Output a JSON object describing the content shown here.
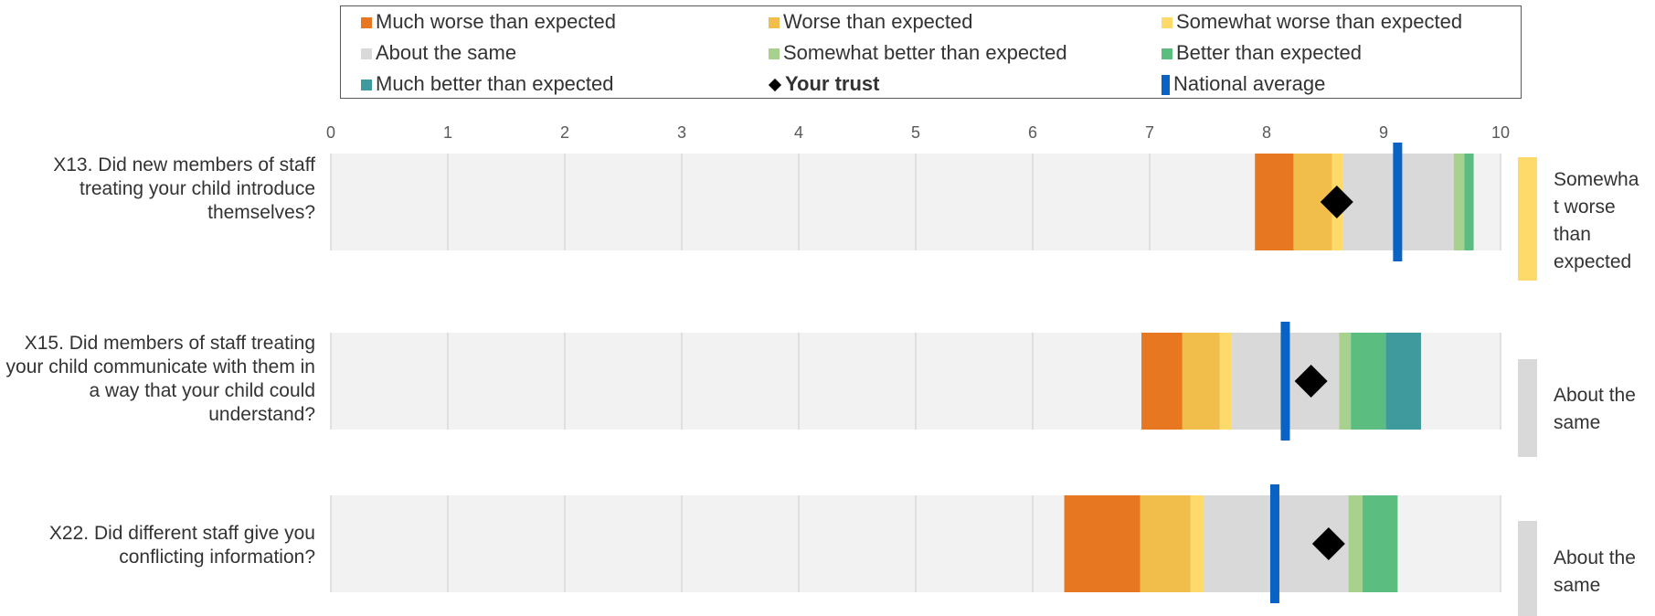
{
  "chart_data": {
    "type": "bar",
    "xlim": [
      0,
      10
    ],
    "ticks": [
      0,
      1,
      2,
      3,
      4,
      5,
      6,
      7,
      8,
      9,
      10
    ],
    "legend": {
      "placement": "top",
      "items": [
        {
          "key": "much_worse",
          "label": "Much worse than expected",
          "color": "#E87722",
          "marker": "square"
        },
        {
          "key": "worse",
          "label": "Worse than expected",
          "color": "#F2BE4B",
          "marker": "square"
        },
        {
          "key": "somewhat_worse",
          "label": "Somewhat worse than expected",
          "color": "#FDDA6A",
          "marker": "square"
        },
        {
          "key": "about_same",
          "label": "About the same",
          "color": "#D9D9D9",
          "marker": "square"
        },
        {
          "key": "somewhat_better",
          "label": "Somewhat better than expected",
          "color": "#A9D18E",
          "marker": "square"
        },
        {
          "key": "better",
          "label": "Better than expected",
          "color": "#5CBD81",
          "marker": "square"
        },
        {
          "key": "much_better",
          "label": "Much better than expected",
          "color": "#3F9A9E",
          "marker": "square"
        },
        {
          "key": "your_trust",
          "label": "Your trust",
          "color": "#000000",
          "marker": "diamond",
          "bold": true
        },
        {
          "key": "national_average",
          "label": "National average",
          "color": "#0A62C4",
          "marker": "bar"
        }
      ]
    },
    "colors": {
      "background_band": "#F2F2F2",
      "gridline": "#D9D9D9"
    },
    "questions": [
      {
        "label": "X13. Did new members of staff treating your child introduce themselves?",
        "segments": [
          {
            "band": "much_worse",
            "from": 7.9,
            "to": 8.23
          },
          {
            "band": "worse",
            "from": 8.23,
            "to": 8.56
          },
          {
            "band": "somewhat_worse",
            "from": 8.56,
            "to": 8.65
          },
          {
            "band": "about_same",
            "from": 8.65,
            "to": 9.6
          },
          {
            "band": "somewhat_better",
            "from": 9.6,
            "to": 9.69
          },
          {
            "band": "better",
            "from": 9.69,
            "to": 9.77
          }
        ],
        "your_trust": 8.6,
        "national_average": 9.12,
        "verdict": "Somewhat worse than expected",
        "verdict_lines": [
          "Somewha",
          "t worse",
          "than",
          "expected"
        ],
        "verdict_band": "somewhat_worse"
      },
      {
        "label": "X15. Did members of staff treating your child communicate with them in a way that your child could understand?",
        "segments": [
          {
            "band": "much_worse",
            "from": 6.93,
            "to": 7.28
          },
          {
            "band": "worse",
            "from": 7.28,
            "to": 7.6
          },
          {
            "band": "somewhat_worse",
            "from": 7.6,
            "to": 7.7
          },
          {
            "band": "about_same",
            "from": 7.7,
            "to": 8.62
          },
          {
            "band": "somewhat_better",
            "from": 8.62,
            "to": 8.72
          },
          {
            "band": "better",
            "from": 8.72,
            "to": 9.02
          },
          {
            "band": "much_better",
            "from": 9.02,
            "to": 9.32
          }
        ],
        "your_trust": 8.38,
        "national_average": 8.16,
        "verdict": "About the same",
        "verdict_lines": [
          "About the",
          "same"
        ],
        "verdict_band": "about_same"
      },
      {
        "label": "X22. Did different staff give you conflicting information?",
        "segments": [
          {
            "band": "much_worse",
            "from": 6.27,
            "to": 6.92
          },
          {
            "band": "worse",
            "from": 6.92,
            "to": 7.35
          },
          {
            "band": "somewhat_worse",
            "from": 7.35,
            "to": 7.46
          },
          {
            "band": "about_same",
            "from": 7.46,
            "to": 8.7
          },
          {
            "band": "somewhat_better",
            "from": 8.7,
            "to": 8.82
          },
          {
            "band": "better",
            "from": 8.82,
            "to": 9.12
          }
        ],
        "your_trust": 8.53,
        "national_average": 8.07,
        "verdict": "About the same",
        "verdict_lines": [
          "About the",
          "same"
        ],
        "verdict_band": "about_same"
      }
    ]
  }
}
